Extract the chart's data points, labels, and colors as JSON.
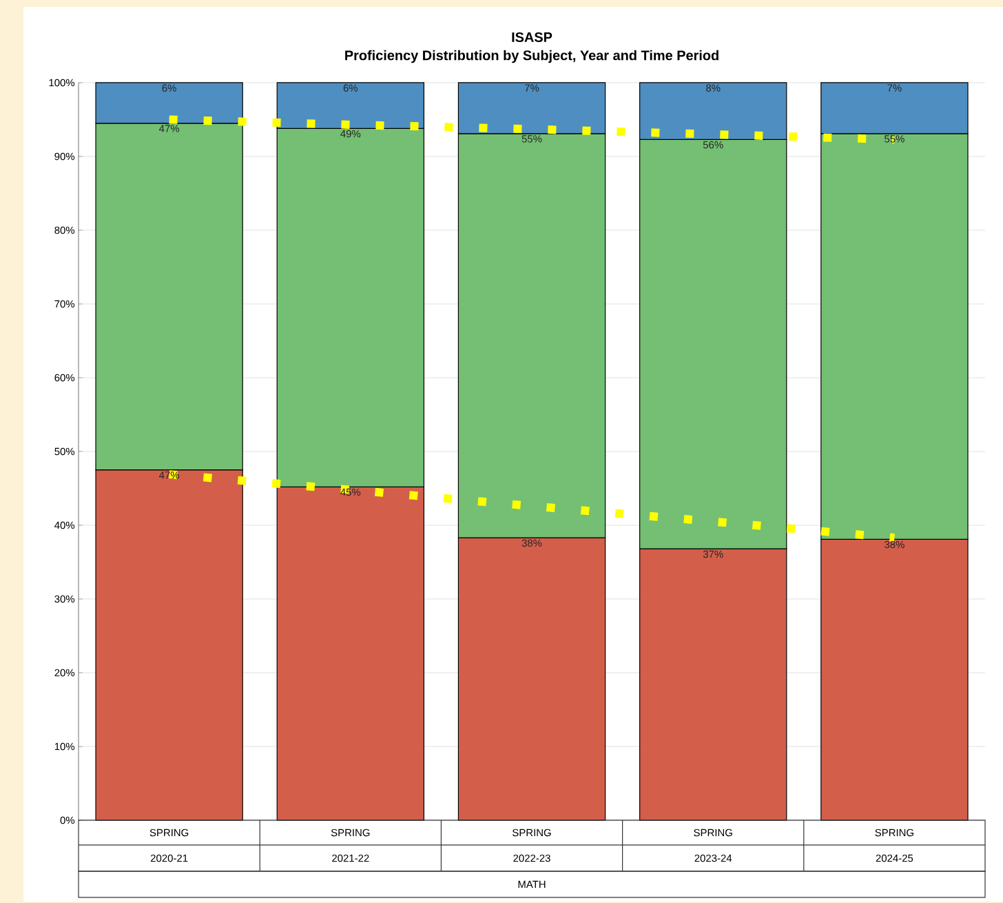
{
  "chart_data": {
    "type": "bar",
    "stacked": true,
    "title": "ISASP",
    "subtitle": "Proficiency Distribution by Subject, Year and Time Period",
    "xlabel": "MATH",
    "categories": [
      "2020-21",
      "2021-22",
      "2022-23",
      "2023-24",
      "2024-25"
    ],
    "annotations": [
      "SPRING",
      "SPRING",
      "SPRING",
      "SPRING",
      "SPRING"
    ],
    "series": [
      {
        "color": "#d35f4b",
        "values": [
          47.5,
          45.2,
          38.3,
          36.8,
          38.1
        ],
        "value_labels": [
          "47%",
          "45%",
          "38%",
          "37%",
          "38%"
        ]
      },
      {
        "color": "#74bf73",
        "values": [
          47.0,
          48.6,
          54.8,
          55.5,
          55.0
        ],
        "value_labels": [
          "47%",
          "49%",
          "55%",
          "56%",
          "55%"
        ]
      },
      {
        "color": "#4f8ec0",
        "values": [
          5.5,
          6.2,
          6.9,
          7.7,
          6.9
        ],
        "value_labels": [
          "6%",
          "6%",
          "7%",
          "8%",
          "7%"
        ]
      },
      {
        "type": "line",
        "color": "#ffff00",
        "line_style": "dotted",
        "marker": "none",
        "values": [
          95.0,
          94.3,
          93.7,
          93.0,
          92.3
        ]
      },
      {
        "type": "line",
        "color": "#ffff00",
        "line_style": "dotted",
        "marker": "none",
        "values": [
          46.9,
          44.8,
          42.6,
          40.5,
          38.3
        ]
      }
    ],
    "ylim": [
      0,
      100
    ],
    "yticks": [
      {
        "value": 0,
        "label": "0%"
      },
      {
        "value": 10,
        "label": "10%"
      },
      {
        "value": 20,
        "label": "20%"
      },
      {
        "value": 30,
        "label": "30%"
      },
      {
        "value": 40,
        "label": "40%"
      },
      {
        "value": 50,
        "label": "50%"
      },
      {
        "value": 60,
        "label": "60%"
      },
      {
        "value": 70,
        "label": "70%"
      },
      {
        "value": 80,
        "label": "80%"
      },
      {
        "value": 90,
        "label": "90%"
      },
      {
        "value": 100,
        "label": "100%"
      }
    ],
    "grid": "y"
  }
}
